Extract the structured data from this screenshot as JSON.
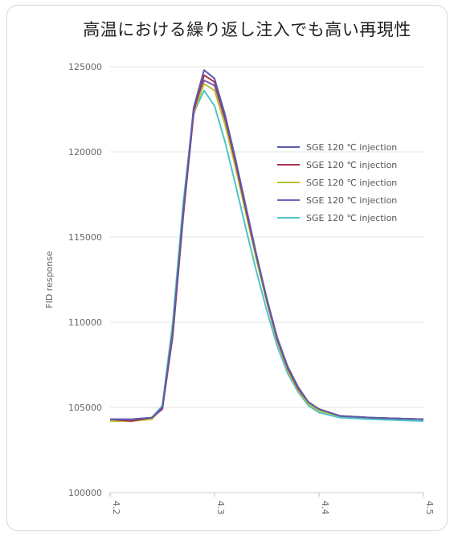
{
  "chart_data": {
    "type": "line",
    "title": "高温における繰り返し注入でも高い再現性",
    "xlabel": "",
    "ylabel": "FID response",
    "xlim": [
      4.2,
      4.5
    ],
    "ylim": [
      100000,
      125000
    ],
    "xticks": [
      "4.2",
      "4.3",
      "4.4",
      "4.5"
    ],
    "yticks": [
      "125000",
      "120000",
      "115000",
      "110000",
      "105000",
      "100000"
    ],
    "grid": "horizontal",
    "legend_position": "right",
    "series": [
      {
        "name": "SGE 120 ℃ injection",
        "color": "#5a5cb0",
        "x": [
          4.2,
          4.22,
          4.24,
          4.25,
          4.26,
          4.27,
          4.28,
          4.29,
          4.3,
          4.31,
          4.32,
          4.33,
          4.34,
          4.35,
          4.36,
          4.37,
          4.38,
          4.39,
          4.4,
          4.42,
          4.45,
          4.5
        ],
        "y": [
          104300,
          104300,
          104400,
          105000,
          109500,
          116500,
          122600,
          124800,
          124300,
          122200,
          119600,
          116800,
          114000,
          111400,
          109100,
          107400,
          106200,
          105300,
          104900,
          104500,
          104400,
          104300
        ]
      },
      {
        "name": "SGE 120 ℃ injection",
        "color": "#a8354e",
        "x": [
          4.2,
          4.22,
          4.24,
          4.25,
          4.26,
          4.27,
          4.28,
          4.29,
          4.3,
          4.31,
          4.32,
          4.33,
          4.34,
          4.35,
          4.36,
          4.37,
          4.38,
          4.39,
          4.4,
          4.42,
          4.45,
          4.5
        ],
        "y": [
          104300,
          104200,
          104400,
          104900,
          109200,
          116200,
          122400,
          124500,
          124100,
          122000,
          119400,
          116600,
          113900,
          111300,
          109000,
          107300,
          106100,
          105300,
          104900,
          104500,
          104400,
          104300
        ]
      },
      {
        "name": "SGE 120 ℃ injection",
        "color": "#b9c234",
        "x": [
          4.2,
          4.22,
          4.24,
          4.25,
          4.26,
          4.27,
          4.28,
          4.29,
          4.3,
          4.31,
          4.32,
          4.33,
          4.34,
          4.35,
          4.36,
          4.37,
          4.38,
          4.39,
          4.4,
          4.42,
          4.45,
          4.5
        ],
        "y": [
          104200,
          104200,
          104300,
          105000,
          109600,
          116600,
          122300,
          124000,
          123600,
          121600,
          119100,
          116400,
          113700,
          111200,
          108900,
          107200,
          106000,
          105200,
          104800,
          104500,
          104400,
          104300
        ]
      },
      {
        "name": "SGE 120 ℃ injection",
        "color": "#7a62b8",
        "x": [
          4.2,
          4.22,
          4.24,
          4.25,
          4.26,
          4.27,
          4.28,
          4.29,
          4.3,
          4.31,
          4.32,
          4.33,
          4.34,
          4.35,
          4.36,
          4.37,
          4.38,
          4.39,
          4.4,
          4.42,
          4.45,
          4.5
        ],
        "y": [
          104300,
          104300,
          104400,
          104900,
          109300,
          116300,
          122200,
          124200,
          123900,
          121900,
          119300,
          116500,
          113800,
          111300,
          109000,
          107300,
          106100,
          105300,
          104900,
          104500,
          104400,
          104300
        ]
      },
      {
        "name": "SGE 120 ℃ injection",
        "color": "#4fc4c9",
        "x": [
          4.2,
          4.22,
          4.24,
          4.25,
          4.26,
          4.27,
          4.28,
          4.29,
          4.3,
          4.31,
          4.32,
          4.33,
          4.34,
          4.35,
          4.36,
          4.37,
          4.38,
          4.39,
          4.4,
          4.42,
          4.45,
          4.5
        ],
        "y": [
          104200,
          104200,
          104400,
          105100,
          110000,
          117000,
          122300,
          123600,
          122700,
          120600,
          118100,
          115500,
          113000,
          110700,
          108600,
          107000,
          105900,
          105100,
          104700,
          104400,
          104300,
          104200
        ]
      }
    ]
  }
}
